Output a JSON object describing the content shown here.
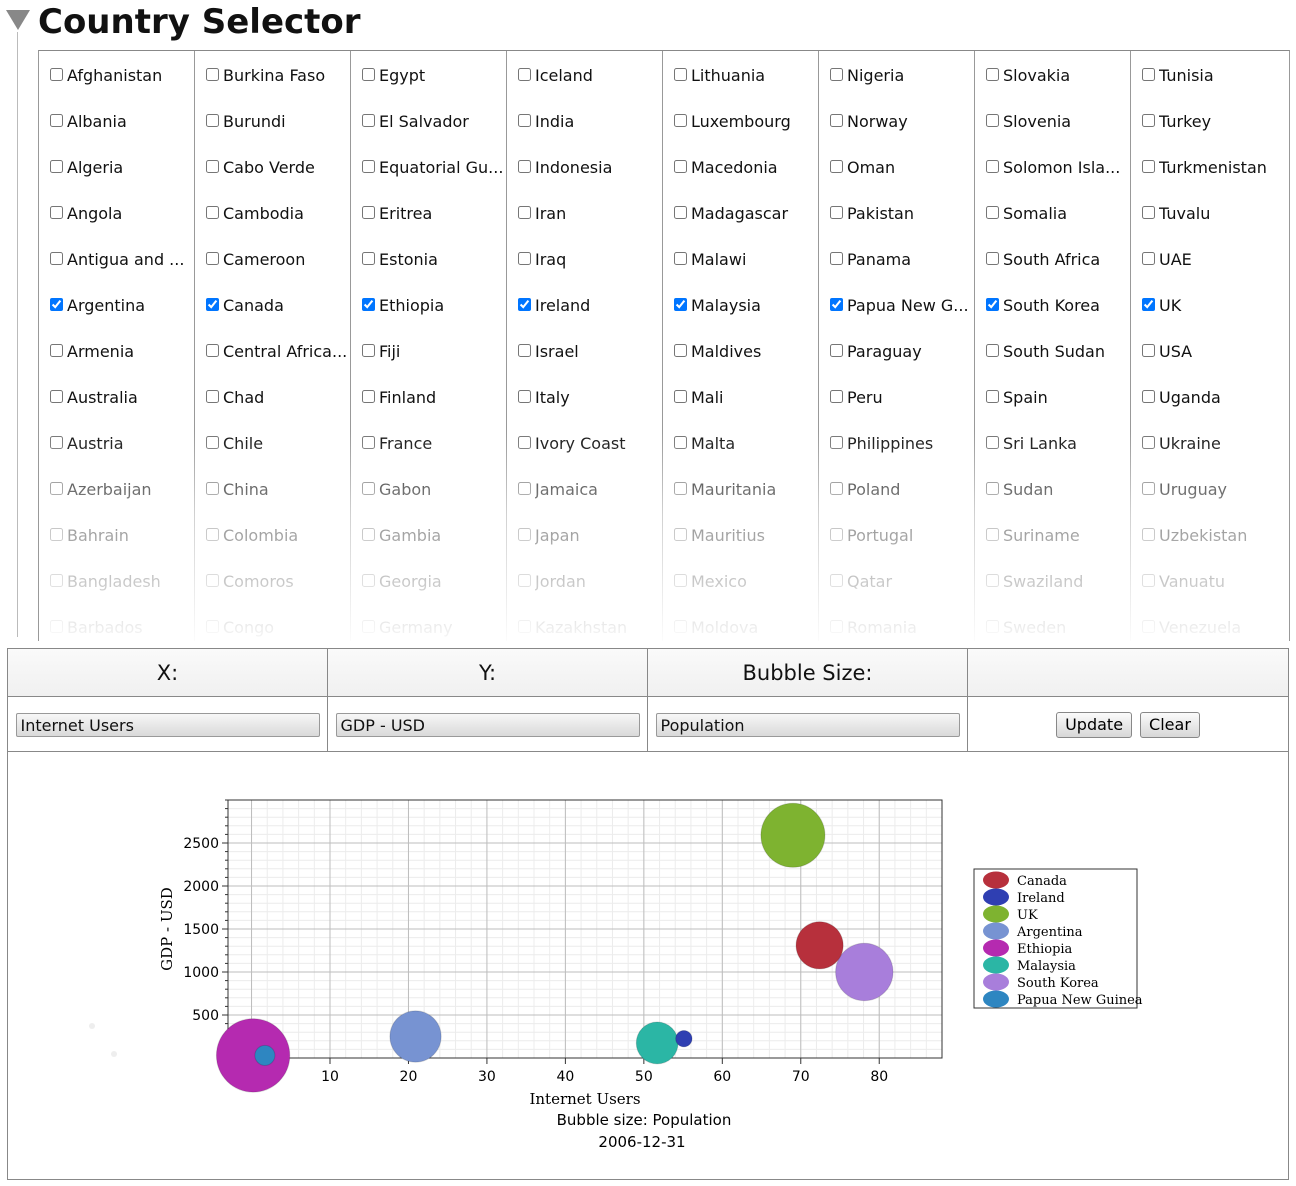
{
  "header": {
    "title": "Country Selector"
  },
  "countries": {
    "columns": [
      [
        {
          "name": "Afghanistan",
          "checked": false
        },
        {
          "name": "Albania",
          "checked": false
        },
        {
          "name": "Algeria",
          "checked": false
        },
        {
          "name": "Angola",
          "checked": false
        },
        {
          "name": "Antigua and ...",
          "checked": false
        },
        {
          "name": "Argentina",
          "checked": true
        },
        {
          "name": "Armenia",
          "checked": false
        },
        {
          "name": "Australia",
          "checked": false
        },
        {
          "name": "Austria",
          "checked": false
        },
        {
          "name": "Azerbaijan",
          "checked": false
        },
        {
          "name": "Bahrain",
          "checked": false
        },
        {
          "name": "Bangladesh",
          "checked": false
        },
        {
          "name": "Barbados",
          "checked": false
        }
      ],
      [
        {
          "name": "Burkina Faso",
          "checked": false
        },
        {
          "name": "Burundi",
          "checked": false
        },
        {
          "name": "Cabo Verde",
          "checked": false
        },
        {
          "name": "Cambodia",
          "checked": false
        },
        {
          "name": "Cameroon",
          "checked": false
        },
        {
          "name": "Canada",
          "checked": true
        },
        {
          "name": "Central Africa...",
          "checked": false
        },
        {
          "name": "Chad",
          "checked": false
        },
        {
          "name": "Chile",
          "checked": false
        },
        {
          "name": "China",
          "checked": false
        },
        {
          "name": "Colombia",
          "checked": false
        },
        {
          "name": "Comoros",
          "checked": false
        },
        {
          "name": "Congo",
          "checked": false
        }
      ],
      [
        {
          "name": "Egypt",
          "checked": false
        },
        {
          "name": "El Salvador",
          "checked": false
        },
        {
          "name": "Equatorial Gu...",
          "checked": false
        },
        {
          "name": "Eritrea",
          "checked": false
        },
        {
          "name": "Estonia",
          "checked": false
        },
        {
          "name": "Ethiopia",
          "checked": true
        },
        {
          "name": "Fiji",
          "checked": false
        },
        {
          "name": "Finland",
          "checked": false
        },
        {
          "name": "France",
          "checked": false
        },
        {
          "name": "Gabon",
          "checked": false
        },
        {
          "name": "Gambia",
          "checked": false
        },
        {
          "name": "Georgia",
          "checked": false
        },
        {
          "name": "Germany",
          "checked": false
        }
      ],
      [
        {
          "name": "Iceland",
          "checked": false
        },
        {
          "name": "India",
          "checked": false
        },
        {
          "name": "Indonesia",
          "checked": false
        },
        {
          "name": "Iran",
          "checked": false
        },
        {
          "name": "Iraq",
          "checked": false
        },
        {
          "name": "Ireland",
          "checked": true
        },
        {
          "name": "Israel",
          "checked": false
        },
        {
          "name": "Italy",
          "checked": false
        },
        {
          "name": "Ivory Coast",
          "checked": false
        },
        {
          "name": "Jamaica",
          "checked": false
        },
        {
          "name": "Japan",
          "checked": false
        },
        {
          "name": "Jordan",
          "checked": false
        },
        {
          "name": "Kazakhstan",
          "checked": false
        }
      ],
      [
        {
          "name": "Lithuania",
          "checked": false
        },
        {
          "name": "Luxembourg",
          "checked": false
        },
        {
          "name": "Macedonia",
          "checked": false
        },
        {
          "name": "Madagascar",
          "checked": false
        },
        {
          "name": "Malawi",
          "checked": false
        },
        {
          "name": "Malaysia",
          "checked": true
        },
        {
          "name": "Maldives",
          "checked": false
        },
        {
          "name": "Mali",
          "checked": false
        },
        {
          "name": "Malta",
          "checked": false
        },
        {
          "name": "Mauritania",
          "checked": false
        },
        {
          "name": "Mauritius",
          "checked": false
        },
        {
          "name": "Mexico",
          "checked": false
        },
        {
          "name": "Moldova",
          "checked": false
        }
      ],
      [
        {
          "name": "Nigeria",
          "checked": false
        },
        {
          "name": "Norway",
          "checked": false
        },
        {
          "name": "Oman",
          "checked": false
        },
        {
          "name": "Pakistan",
          "checked": false
        },
        {
          "name": "Panama",
          "checked": false
        },
        {
          "name": "Papua New G...",
          "checked": true
        },
        {
          "name": "Paraguay",
          "checked": false
        },
        {
          "name": "Peru",
          "checked": false
        },
        {
          "name": "Philippines",
          "checked": false
        },
        {
          "name": "Poland",
          "checked": false
        },
        {
          "name": "Portugal",
          "checked": false
        },
        {
          "name": "Qatar",
          "checked": false
        },
        {
          "name": "Romania",
          "checked": false
        }
      ],
      [
        {
          "name": "Slovakia",
          "checked": false
        },
        {
          "name": "Slovenia",
          "checked": false
        },
        {
          "name": "Solomon Isla...",
          "checked": false
        },
        {
          "name": "Somalia",
          "checked": false
        },
        {
          "name": "South Africa",
          "checked": false
        },
        {
          "name": "South Korea",
          "checked": true
        },
        {
          "name": "South Sudan",
          "checked": false
        },
        {
          "name": "Spain",
          "checked": false
        },
        {
          "name": "Sri Lanka",
          "checked": false
        },
        {
          "name": "Sudan",
          "checked": false
        },
        {
          "name": "Suriname",
          "checked": false
        },
        {
          "name": "Swaziland",
          "checked": false
        },
        {
          "name": "Sweden",
          "checked": false
        }
      ],
      [
        {
          "name": "Tunisia",
          "checked": false
        },
        {
          "name": "Turkey",
          "checked": false
        },
        {
          "name": "Turkmenistan",
          "checked": false
        },
        {
          "name": "Tuvalu",
          "checked": false
        },
        {
          "name": "UAE",
          "checked": false
        },
        {
          "name": "UK",
          "checked": true
        },
        {
          "name": "USA",
          "checked": false
        },
        {
          "name": "Uganda",
          "checked": false
        },
        {
          "name": "Ukraine",
          "checked": false
        },
        {
          "name": "Uruguay",
          "checked": false
        },
        {
          "name": "Uzbekistan",
          "checked": false
        },
        {
          "name": "Vanuatu",
          "checked": false
        },
        {
          "name": "Venezuela",
          "checked": false
        }
      ]
    ]
  },
  "controls": {
    "x_label": "X:",
    "y_label": "Y:",
    "size_label": "Bubble Size:",
    "x_value": "Internet Users",
    "y_value": "GDP - USD",
    "size_value": "Population",
    "update_label": "Update",
    "clear_label": "Clear"
  },
  "chart_data": {
    "type": "scatter",
    "subtype": "bubble",
    "xlabel": "Internet Users",
    "ylabel": "GDP - USD",
    "subtitle": "Bubble size: Population",
    "date": "2006-12-31",
    "xlim": [
      -3,
      88
    ],
    "ylim": [
      0,
      3000
    ],
    "x_ticks": [
      0,
      10,
      20,
      30,
      40,
      50,
      60,
      70,
      80
    ],
    "y_ticks": [
      500,
      1000,
      1500,
      2000,
      2500
    ],
    "grid": true,
    "legend_position": "right",
    "series": [
      {
        "name": "Canada",
        "x": 72.4,
        "y": 1310,
        "size": 33,
        "color": "#b7303c"
      },
      {
        "name": "Ireland",
        "x": 55.1,
        "y": 225,
        "size": 4,
        "color": "#2f3fb2"
      },
      {
        "name": "UK",
        "x": 69.0,
        "y": 2590,
        "size": 61,
        "color": "#7eb330"
      },
      {
        "name": "Argentina",
        "x": 20.9,
        "y": 250,
        "size": 39,
        "color": "#7793d2"
      },
      {
        "name": "Ethiopia",
        "x": 0.2,
        "y": 30,
        "size": 80,
        "color": "#b52ab0"
      },
      {
        "name": "Malaysia",
        "x": 51.7,
        "y": 175,
        "size": 26,
        "color": "#2bb6a5"
      },
      {
        "name": "South Korea",
        "x": 78.1,
        "y": 1000,
        "size": 49,
        "color": "#a87edb"
      },
      {
        "name": "Papua New Guinea",
        "x": 1.7,
        "y": 30,
        "size": 6,
        "color": "#2e86c1"
      }
    ]
  }
}
